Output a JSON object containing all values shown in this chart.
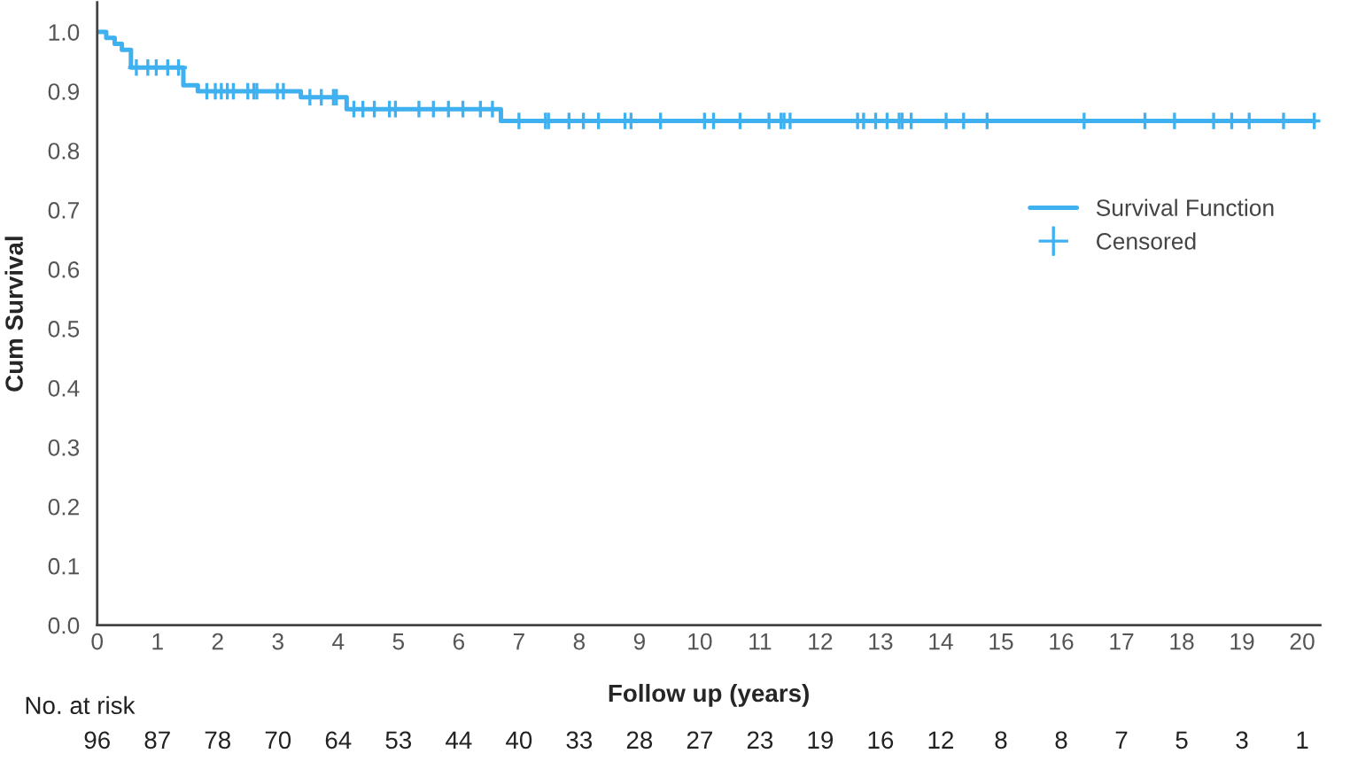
{
  "chart_data": {
    "type": "step",
    "xlabel": "Follow up (years)",
    "ylabel": "Cum Survival",
    "series": [
      {
        "name": "Survival Function",
        "color": "#3fb0f0",
        "x": [
          0,
          0.15,
          0.29,
          0.41,
          0.56,
          1.43,
          1.67,
          3.38,
          4.14,
          6.7,
          20.2
        ],
        "values": [
          1.0,
          0.99,
          0.98,
          0.97,
          0.94,
          0.91,
          0.9,
          0.89,
          0.87,
          0.85,
          0.85
        ]
      },
      {
        "name": "Censored",
        "type": "scatter",
        "marker": "cross",
        "color": "#3fb0f0",
        "x": [
          0.65,
          0.84,
          0.98,
          1.17,
          1.35,
          1.82,
          1.96,
          2.06,
          2.16,
          2.26,
          2.5,
          2.6,
          2.65,
          2.99,
          3.09,
          3.53,
          3.72,
          3.92,
          3.97,
          4.26,
          4.41,
          4.6,
          4.85,
          4.95,
          5.34,
          5.58,
          5.83,
          6.07,
          6.36,
          6.56,
          7.0,
          7.44,
          7.49,
          7.83,
          8.07,
          8.32,
          8.76,
          8.86,
          9.35,
          10.08,
          10.23,
          10.67,
          11.15,
          11.35,
          11.4,
          11.5,
          12.62,
          12.72,
          12.92,
          13.11,
          13.31,
          13.36,
          13.51,
          14.09,
          14.38,
          14.77,
          16.38,
          17.39,
          17.88,
          18.53,
          18.83,
          19.12,
          19.69,
          20.2
        ],
        "values": [
          0.94,
          0.94,
          0.94,
          0.94,
          0.94,
          0.9,
          0.9,
          0.9,
          0.9,
          0.9,
          0.9,
          0.9,
          0.9,
          0.9,
          0.9,
          0.89,
          0.89,
          0.89,
          0.89,
          0.87,
          0.87,
          0.87,
          0.87,
          0.87,
          0.87,
          0.87,
          0.87,
          0.87,
          0.87,
          0.87,
          0.85,
          0.85,
          0.85,
          0.85,
          0.85,
          0.85,
          0.85,
          0.85,
          0.85,
          0.85,
          0.85,
          0.85,
          0.85,
          0.85,
          0.85,
          0.85,
          0.85,
          0.85,
          0.85,
          0.85,
          0.85,
          0.85,
          0.85,
          0.85,
          0.85,
          0.85,
          0.85,
          0.85,
          0.85,
          0.85,
          0.85,
          0.85,
          0.85,
          0.85
        ]
      }
    ],
    "xlim": [
      0,
      20.3
    ],
    "xticks": [
      0,
      1,
      2,
      3,
      4,
      5,
      6,
      7,
      8,
      9,
      10,
      11,
      12,
      13,
      14,
      15,
      16,
      17,
      18,
      19,
      20
    ],
    "ylim": [
      0,
      1.05
    ],
    "yticks": [
      {
        "value": 0,
        "label": "0.0"
      },
      {
        "value": 0.1,
        "label": "0.1"
      },
      {
        "value": 0.2,
        "label": "0.2"
      },
      {
        "value": 0.3,
        "label": "0.3"
      },
      {
        "value": 0.4,
        "label": "0.4"
      },
      {
        "value": 0.5,
        "label": "0.5"
      },
      {
        "value": 0.6,
        "label": "0.6"
      },
      {
        "value": 0.7,
        "label": "0.7"
      },
      {
        "value": 0.8,
        "label": "0.8"
      },
      {
        "value": 0.9,
        "label": "0.9"
      },
      {
        "value": 1.0,
        "label": "1.0"
      }
    ],
    "grid": false,
    "legend": "right",
    "annotations": [
      "No. at risk",
      "96",
      "87",
      "78",
      "70",
      "64",
      "53",
      "44",
      "40",
      "33",
      "28",
      "27",
      "23",
      "19",
      "16",
      "12",
      "8",
      "8",
      "7",
      "5",
      "3",
      "1"
    ]
  }
}
